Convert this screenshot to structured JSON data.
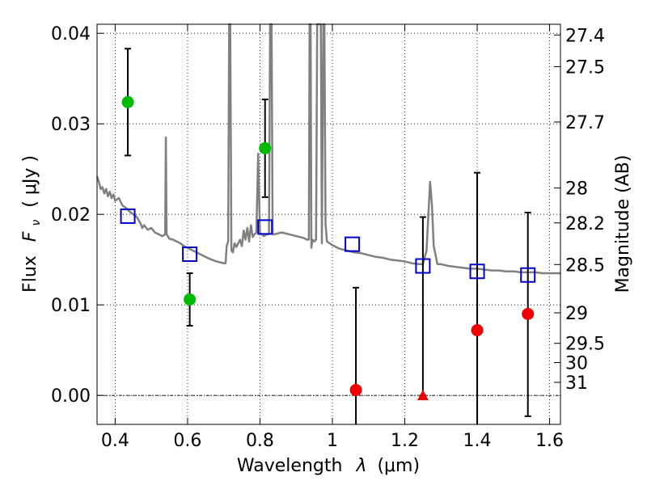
{
  "chart_data": {
    "type": "scatter",
    "xlabel_text": "Wavelength",
    "xlabel_symbol": "λ",
    "xlabel_unit": "(μm)",
    "ylabel_text": "Flux",
    "ylabel_symbol": "F",
    "ylabel_sub": "ν",
    "ylabel_unit": "( μJy )",
    "y2label": "Magnitude (AB)",
    "xlim": [
      0.35,
      1.63
    ],
    "ylim": [
      -0.0032,
      0.041
    ],
    "grid": true,
    "x_ticks": [
      {
        "value": 0.4,
        "label": "0.4"
      },
      {
        "value": 0.6,
        "label": "0.6"
      },
      {
        "value": 0.8,
        "label": "0.8"
      },
      {
        "value": 1.0,
        "label": "1"
      },
      {
        "value": 1.2,
        "label": "1.2"
      },
      {
        "value": 1.4,
        "label": "1.4"
      },
      {
        "value": 1.6,
        "label": "1.6"
      }
    ],
    "y_ticks": [
      {
        "value": 0.0,
        "label": "0.00"
      },
      {
        "value": 0.01,
        "label": "0.01"
      },
      {
        "value": 0.02,
        "label": "0.02"
      },
      {
        "value": 0.03,
        "label": "0.03"
      },
      {
        "value": 0.04,
        "label": "0.04"
      }
    ],
    "mag_ticks": [
      {
        "value": 27.4,
        "label": "27.4"
      },
      {
        "value": 27.5,
        "label": "27.5"
      },
      {
        "value": 27.7,
        "label": "27.7"
      },
      {
        "value": 28,
        "label": "28"
      },
      {
        "value": 28.2,
        "label": "28.2"
      },
      {
        "value": 28.5,
        "label": "28.5"
      },
      {
        "value": 29,
        "label": "29"
      },
      {
        "value": 29.5,
        "label": "29.5"
      },
      {
        "value": 30,
        "label": "30"
      },
      {
        "value": 31,
        "label": "31"
      }
    ],
    "model_spectrum": {
      "color": "#808080",
      "points": [
        [
          0.35,
          0.0242
        ],
        [
          0.355,
          0.0236
        ],
        [
          0.36,
          0.0228
        ],
        [
          0.365,
          0.023
        ],
        [
          0.37,
          0.0223
        ],
        [
          0.375,
          0.0228
        ],
        [
          0.38,
          0.022
        ],
        [
          0.385,
          0.0225
        ],
        [
          0.39,
          0.0218
        ],
        [
          0.395,
          0.0222
        ],
        [
          0.4,
          0.0215
        ],
        [
          0.41,
          0.0218
        ],
        [
          0.42,
          0.021
        ],
        [
          0.43,
          0.0207
        ],
        [
          0.44,
          0.0203
        ],
        [
          0.45,
          0.02
        ],
        [
          0.46,
          0.0197
        ],
        [
          0.47,
          0.019
        ],
        [
          0.475,
          0.0185
        ],
        [
          0.48,
          0.0188
        ],
        [
          0.49,
          0.0183
        ],
        [
          0.5,
          0.0185
        ],
        [
          0.51,
          0.018
        ],
        [
          0.52,
          0.0178
        ],
        [
          0.53,
          0.0176
        ],
        [
          0.535,
          0.0177
        ],
        [
          0.538,
          0.0178
        ],
        [
          0.54,
          0.0285
        ],
        [
          0.542,
          0.0178
        ],
        [
          0.55,
          0.0173
        ],
        [
          0.56,
          0.0172
        ],
        [
          0.57,
          0.017
        ],
        [
          0.58,
          0.0168
        ],
        [
          0.59,
          0.0165
        ],
        [
          0.6,
          0.0163
        ],
        [
          0.62,
          0.0159
        ],
        [
          0.64,
          0.0155
        ],
        [
          0.66,
          0.0151
        ],
        [
          0.68,
          0.0148
        ],
        [
          0.7,
          0.0146
        ],
        [
          0.705,
          0.0146
        ],
        [
          0.708,
          0.0165
        ],
        [
          0.712,
          0.017
        ],
        [
          0.715,
          0.0412
        ],
        [
          0.718,
          0.0412
        ],
        [
          0.721,
          0.016
        ],
        [
          0.725,
          0.0158
        ],
        [
          0.73,
          0.0168
        ],
        [
          0.735,
          0.0164
        ],
        [
          0.74,
          0.0168
        ],
        [
          0.745,
          0.0172
        ],
        [
          0.75,
          0.0165
        ],
        [
          0.755,
          0.0182
        ],
        [
          0.76,
          0.0172
        ],
        [
          0.765,
          0.0185
        ],
        [
          0.77,
          0.017
        ],
        [
          0.775,
          0.0188
        ],
        [
          0.78,
          0.0175
        ],
        [
          0.785,
          0.0178
        ],
        [
          0.79,
          0.018
        ],
        [
          0.795,
          0.0267
        ],
        [
          0.8,
          0.018
        ],
        [
          0.81,
          0.0176
        ],
        [
          0.82,
          0.0178
        ],
        [
          0.825,
          0.0178
        ],
        [
          0.828,
          0.0412
        ],
        [
          0.832,
          0.0412
        ],
        [
          0.835,
          0.0178
        ],
        [
          0.84,
          0.0178
        ],
        [
          0.86,
          0.018
        ],
        [
          0.88,
          0.0178
        ],
        [
          0.9,
          0.0176
        ],
        [
          0.92,
          0.0174
        ],
        [
          0.93,
          0.0172
        ],
        [
          0.935,
          0.0172
        ],
        [
          0.937,
          0.0412
        ],
        [
          0.94,
          0.0412
        ],
        [
          0.942,
          0.0163
        ],
        [
          0.945,
          0.0172
        ],
        [
          0.95,
          0.017
        ],
        [
          0.955,
          0.0172
        ],
        [
          0.958,
          0.0412
        ],
        [
          0.962,
          0.0412
        ],
        [
          0.965,
          0.0412
        ],
        [
          0.968,
          0.0412
        ],
        [
          0.971,
          0.0168
        ],
        [
          0.975,
          0.0412
        ],
        [
          0.978,
          0.0412
        ],
        [
          0.981,
          0.019
        ],
        [
          0.985,
          0.017
        ],
        [
          1.0,
          0.0166
        ],
        [
          1.02,
          0.0162
        ],
        [
          1.04,
          0.016
        ],
        [
          1.06,
          0.0158
        ],
        [
          1.08,
          0.0157
        ],
        [
          1.1,
          0.0155
        ],
        [
          1.12,
          0.0153
        ],
        [
          1.14,
          0.0152
        ],
        [
          1.16,
          0.015
        ],
        [
          1.18,
          0.0149
        ],
        [
          1.2,
          0.0148
        ],
        [
          1.22,
          0.0146
        ],
        [
          1.24,
          0.0145
        ],
        [
          1.25,
          0.0145
        ],
        [
          1.26,
          0.016
        ],
        [
          1.27,
          0.0236
        ],
        [
          1.275,
          0.021
        ],
        [
          1.28,
          0.0165
        ],
        [
          1.29,
          0.0145
        ],
        [
          1.3,
          0.0145
        ],
        [
          1.32,
          0.0143
        ],
        [
          1.34,
          0.0142
        ],
        [
          1.36,
          0.0141
        ],
        [
          1.38,
          0.014
        ],
        [
          1.4,
          0.014
        ],
        [
          1.42,
          0.0139
        ],
        [
          1.44,
          0.0138
        ],
        [
          1.46,
          0.0138
        ],
        [
          1.48,
          0.0137
        ],
        [
          1.5,
          0.0137
        ],
        [
          1.52,
          0.0136
        ],
        [
          1.54,
          0.0136
        ],
        [
          1.56,
          0.0136
        ],
        [
          1.58,
          0.0135
        ],
        [
          1.6,
          0.0135
        ],
        [
          1.63,
          0.0135
        ]
      ]
    },
    "model_photometry": {
      "marker": "open-square",
      "color": "#0000cc",
      "points": [
        {
          "x": 0.435,
          "y": 0.0198
        },
        {
          "x": 0.606,
          "y": 0.0156
        },
        {
          "x": 0.814,
          "y": 0.0186
        },
        {
          "x": 1.055,
          "y": 0.0167
        },
        {
          "x": 1.25,
          "y": 0.0143
        },
        {
          "x": 1.4,
          "y": 0.0137
        },
        {
          "x": 1.54,
          "y": 0.0133
        }
      ]
    },
    "observed_detections": {
      "marker": "circle",
      "color": "#00bb00",
      "points": [
        {
          "x": 0.435,
          "y": 0.0324,
          "err_low": 0.0265,
          "err_high": 0.0383
        },
        {
          "x": 0.606,
          "y": 0.0106,
          "err_low": 0.0077,
          "err_high": 0.0135
        },
        {
          "x": 0.814,
          "y": 0.0273,
          "err_low": 0.0219,
          "err_high": 0.0327
        }
      ]
    },
    "observed_nondetections": {
      "marker": "circle",
      "color": "#ee0000",
      "points": [
        {
          "x": 1.065,
          "y": 0.0006,
          "err_low": -0.0032,
          "err_high": 0.0119
        },
        {
          "x": 1.4,
          "y": 0.0072,
          "err_low": -0.0032,
          "err_high": 0.0246
        },
        {
          "x": 1.54,
          "y": 0.009,
          "err_low": -0.0023,
          "err_high": 0.0202
        }
      ]
    },
    "upper_limit": {
      "marker": "triangle",
      "color": "#ee0000",
      "points": [
        {
          "x": 1.25,
          "y": 0.0,
          "err_high": 0.0197
        }
      ]
    }
  }
}
